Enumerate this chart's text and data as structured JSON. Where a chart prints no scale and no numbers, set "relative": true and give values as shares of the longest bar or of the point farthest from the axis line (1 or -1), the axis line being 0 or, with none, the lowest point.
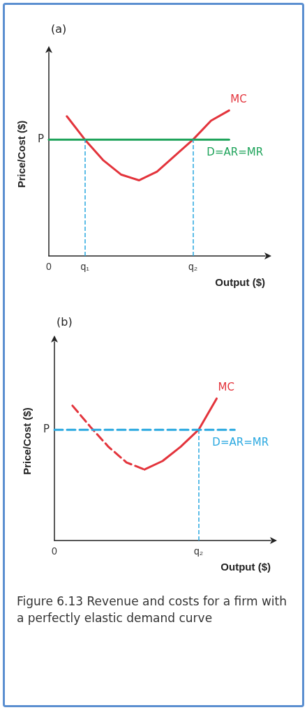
{
  "chart_data": [
    {
      "type": "line",
      "title": "(a)",
      "xlabel": "Output ($)",
      "ylabel": "Price/Cost ($)",
      "relative": true,
      "legend": false,
      "marker": "none",
      "grid": false,
      "categories": [
        "0",
        null,
        "q₁",
        null,
        null,
        null,
        null,
        null,
        "q₂",
        null,
        null,
        null,
        null
      ],
      "series": [
        {
          "name": "MC",
          "color": "#e3343c",
          "line_style": "solid",
          "values": [
            null,
            0.96,
            0.8,
            0.66,
            0.56,
            0.52,
            0.58,
            0.69,
            0.8,
            0.93,
            1.0,
            null,
            null
          ]
        },
        {
          "name": "D=AR=MR",
          "color": "#1ea35a",
          "line_style": "solid",
          "values": [
            0.8,
            0.8,
            0.8,
            0.8,
            0.8,
            0.8,
            0.8,
            0.8,
            0.8,
            0.8,
            0.8,
            null,
            null
          ]
        }
      ],
      "ref_lines": [
        {
          "axis": "x",
          "value": "q₁",
          "color": "#29a8e0",
          "line_style": "dashed"
        },
        {
          "axis": "x",
          "value": "q₂",
          "color": "#29a8e0",
          "line_style": "dashed"
        }
      ],
      "annotations": [
        "P"
      ]
    },
    {
      "type": "line",
      "title": "(b)",
      "xlabel": "Output ($)",
      "ylabel": "Price/Cost ($)",
      "relative": true,
      "legend": false,
      "marker": "none",
      "grid": false,
      "categories": [
        "0",
        null,
        null,
        null,
        null,
        null,
        null,
        null,
        "q₂",
        null,
        null,
        null,
        null
      ],
      "series": [
        {
          "color": "#e3343c",
          "line_style": "dashed",
          "values": [
            null,
            0.95,
            0.8,
            0.66,
            0.55,
            0.5,
            null,
            null,
            null,
            null,
            null,
            null,
            null
          ]
        },
        {
          "name": "MC",
          "color": "#e3343c",
          "line_style": "solid",
          "values": [
            null,
            null,
            null,
            null,
            null,
            0.5,
            0.56,
            0.66,
            0.78,
            1.0,
            null,
            null,
            null
          ]
        },
        {
          "name": "D=AR=MR",
          "color": "#29a8e0",
          "line_style": "dashed",
          "values": [
            0.78,
            0.78,
            0.78,
            0.78,
            0.78,
            0.78,
            0.78,
            0.78,
            0.78,
            0.78,
            0.78,
            null,
            null
          ]
        }
      ],
      "ref_lines": [
        {
          "axis": "x",
          "value": "q₂",
          "color": "#29a8e0",
          "line_style": "dashed"
        }
      ],
      "annotations": [
        "P",
        "Figure 6.13 Revenue and costs for a firm with a perfectly elastic demand curve"
      ]
    }
  ]
}
